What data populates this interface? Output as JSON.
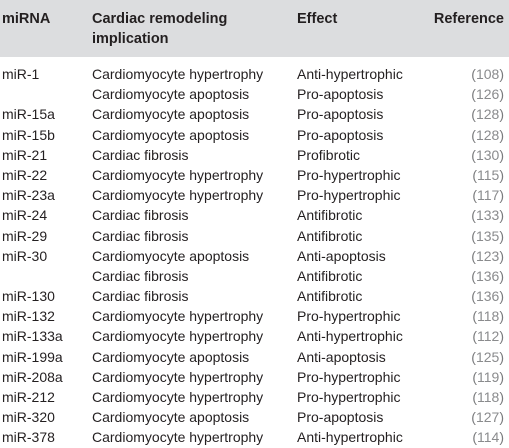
{
  "table": {
    "headers": {
      "mirna": "miRNA",
      "implication": "Cardiac remodeling implication",
      "effect": "Effect",
      "reference": "Reference"
    },
    "rows": [
      {
        "mirna": "miR-1",
        "implication": "Cardiomyocyte hypertrophy",
        "effect": "Anti-hypertrophic",
        "reference": "108"
      },
      {
        "mirna": "",
        "implication": "Cardiomyocyte apoptosis",
        "effect": "Pro-apoptosis",
        "reference": "126"
      },
      {
        "mirna": "miR-15a",
        "implication": "Cardiomyocyte apoptosis",
        "effect": "Pro-apoptosis",
        "reference": "128"
      },
      {
        "mirna": "miR-15b",
        "implication": "Cardiomyocyte apoptosis",
        "effect": "Pro-apoptosis",
        "reference": "128"
      },
      {
        "mirna": "miR-21",
        "implication": "Cardiac fibrosis",
        "effect": "Profibrotic",
        "reference": "130"
      },
      {
        "mirna": "miR-22",
        "implication": "Cardiomyocyte hypertrophy",
        "effect": "Pro-hypertrophic",
        "reference": "115"
      },
      {
        "mirna": "miR-23a",
        "implication": "Cardiomyocyte hypertrophy",
        "effect": "Pro-hypertrophic",
        "reference": "117"
      },
      {
        "mirna": "miR-24",
        "implication": "Cardiac fibrosis",
        "effect": "Antifibrotic",
        "reference": "133"
      },
      {
        "mirna": "miR-29",
        "implication": "Cardiac fibrosis",
        "effect": "Antifibrotic",
        "reference": "135"
      },
      {
        "mirna": "miR-30",
        "implication": "Cardiomyocyte apoptosis",
        "effect": "Anti-apoptosis",
        "reference": "123"
      },
      {
        "mirna": "",
        "implication": "Cardiac fibrosis",
        "effect": "Antifibrotic",
        "reference": "136"
      },
      {
        "mirna": "miR-130",
        "implication": "Cardiac fibrosis",
        "effect": "Antifibrotic",
        "reference": "136"
      },
      {
        "mirna": "miR-132",
        "implication": "Cardiomyocyte hypertrophy",
        "effect": "Pro-hypertrophic",
        "reference": "118"
      },
      {
        "mirna": "miR-133a",
        "implication": "Cardiomyocyte hypertrophy",
        "effect": "Anti-hypertrophic",
        "reference": "112"
      },
      {
        "mirna": "miR-199a",
        "implication": "Cardiomyocyte apoptosis",
        "effect": "Anti-apoptosis",
        "reference": "125"
      },
      {
        "mirna": "miR-208a",
        "implication": "Cardiomyocyte hypertrophy",
        "effect": "Pro-hypertrophic",
        "reference": "119"
      },
      {
        "mirna": "miR-212",
        "implication": "Cardiomyocyte hypertrophy",
        "effect": "Pro-hypertrophic",
        "reference": "118"
      },
      {
        "mirna": "miR-320",
        "implication": "Cardiomyocyte apoptosis",
        "effect": "Pro-apoptosis",
        "reference": "127"
      },
      {
        "mirna": "miR-378",
        "implication": "Cardiomyocyte hypertrophy",
        "effect": "Anti-hypertrophic",
        "reference": "114"
      }
    ]
  },
  "colors": {
    "header_background": "#dcdddf",
    "text": "#231f20",
    "reference_text": "#8a8b8d"
  }
}
